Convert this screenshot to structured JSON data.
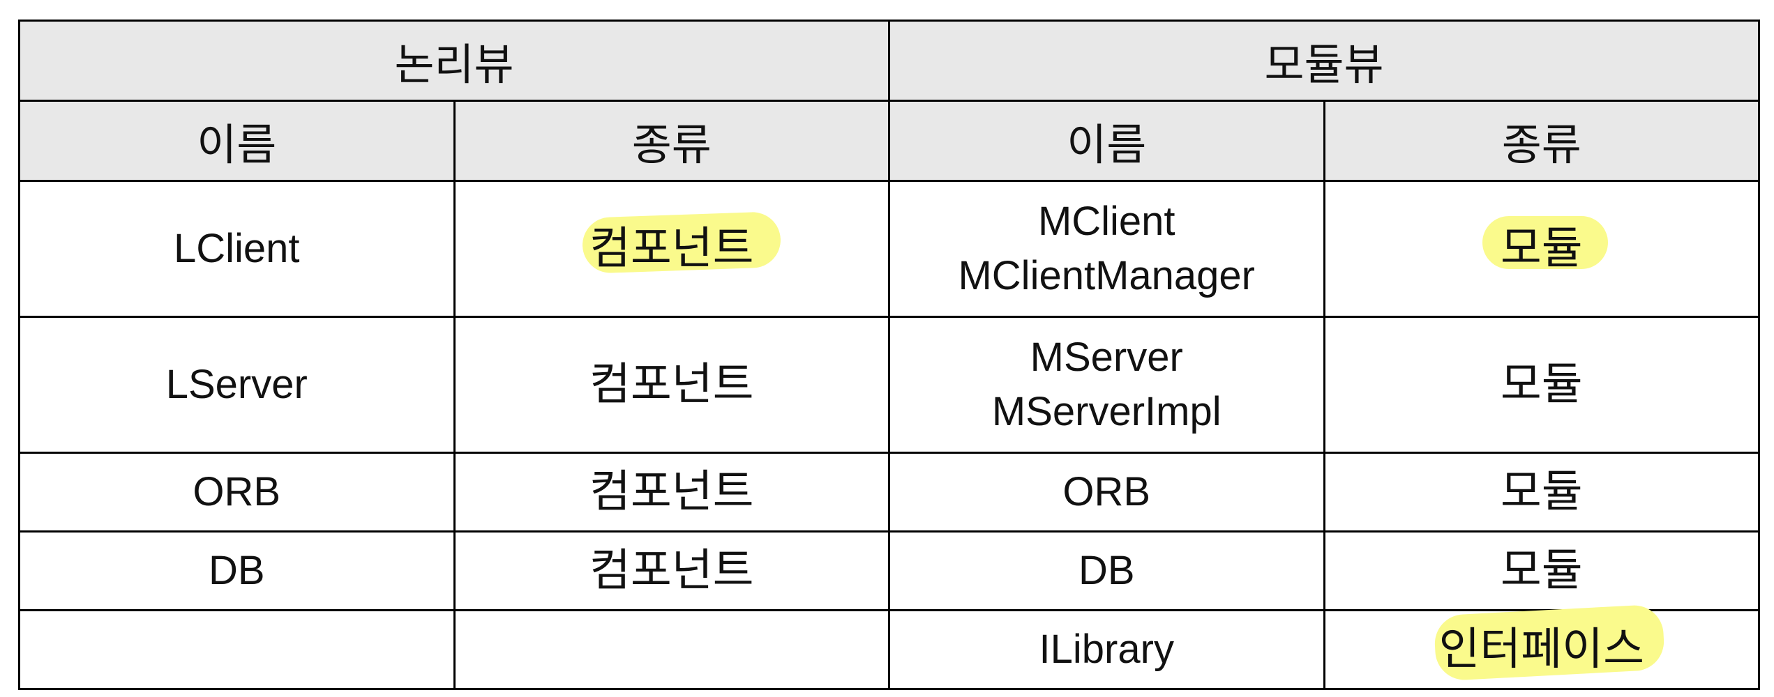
{
  "table": {
    "group_headers": {
      "logical": "논리뷰",
      "module": "모듈뷰"
    },
    "sub_headers": {
      "logical_name": "이름",
      "logical_kind": "종류",
      "module_name": "이름",
      "module_kind": "종류"
    },
    "rows": [
      {
        "logical_name": "LClient",
        "logical_kind": "컴포넌트",
        "module_names": [
          "MClient",
          "MClientManager"
        ],
        "module_kind": "모듈"
      },
      {
        "logical_name": "LServer",
        "logical_kind": "컴포넌트",
        "module_names": [
          "MServer",
          "MServerImpl"
        ],
        "module_kind": "모듈"
      },
      {
        "logical_name": "ORB",
        "logical_kind": "컴포넌트",
        "module_names": [
          "ORB"
        ],
        "module_kind": "모듈"
      },
      {
        "logical_name": "DB",
        "logical_kind": "컴포넌트",
        "module_names": [
          "DB"
        ],
        "module_kind": "모듈"
      },
      {
        "logical_name": "",
        "logical_kind": "",
        "module_names": [
          "ILibrary"
        ],
        "module_kind": "인터페이스"
      }
    ],
    "highlight_color": "#fafa8c"
  }
}
